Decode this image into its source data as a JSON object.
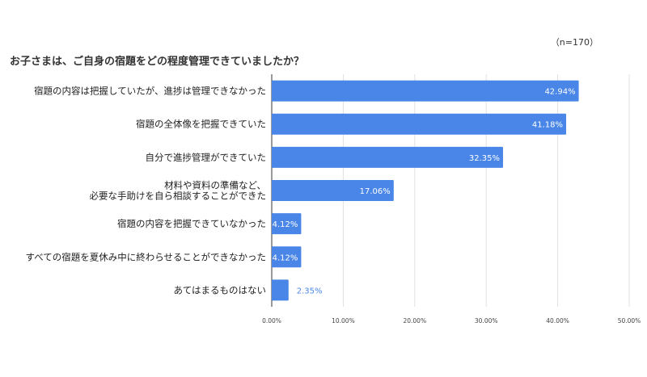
{
  "chart_data": {
    "type": "bar",
    "orientation": "horizontal",
    "title": "お子さまは、ご自身の宿題をどの程度管理できていましたか？",
    "note": "（n=170）",
    "categories": [
      [
        "宿題の内容は把握していたが、進捗は管理できなかった"
      ],
      [
        "宿題の全体像を把握できていた"
      ],
      [
        "自分で進捗管理ができていた"
      ],
      [
        "材料や資料の準備など、",
        "必要な手助けを自ら相談することができた"
      ],
      [
        "宿題の内容を把握できていなかった"
      ],
      [
        "すべての宿題を夏休み中に終わらせることができなかった"
      ],
      [
        "あてはまるものはない"
      ]
    ],
    "values": [
      42.94,
      41.18,
      32.35,
      17.06,
      4.12,
      4.12,
      2.35
    ],
    "value_labels": [
      "42.94%",
      "41.18%",
      "32.35%",
      "17.06%",
      "4.12%",
      "4.12%",
      "2.35%"
    ],
    "xlim": [
      0,
      50
    ],
    "xticks": [
      0,
      10,
      20,
      30,
      40,
      50
    ],
    "xtick_labels": [
      "0.00%",
      "10.00%",
      "20.00%",
      "30.00%",
      "40.00%",
      "50.00%"
    ],
    "xlabel": "",
    "ylabel": "",
    "grid": true,
    "colors": {
      "bar": "#4a86e8",
      "grid": "#e0e0e0",
      "axis": "#333333"
    }
  }
}
